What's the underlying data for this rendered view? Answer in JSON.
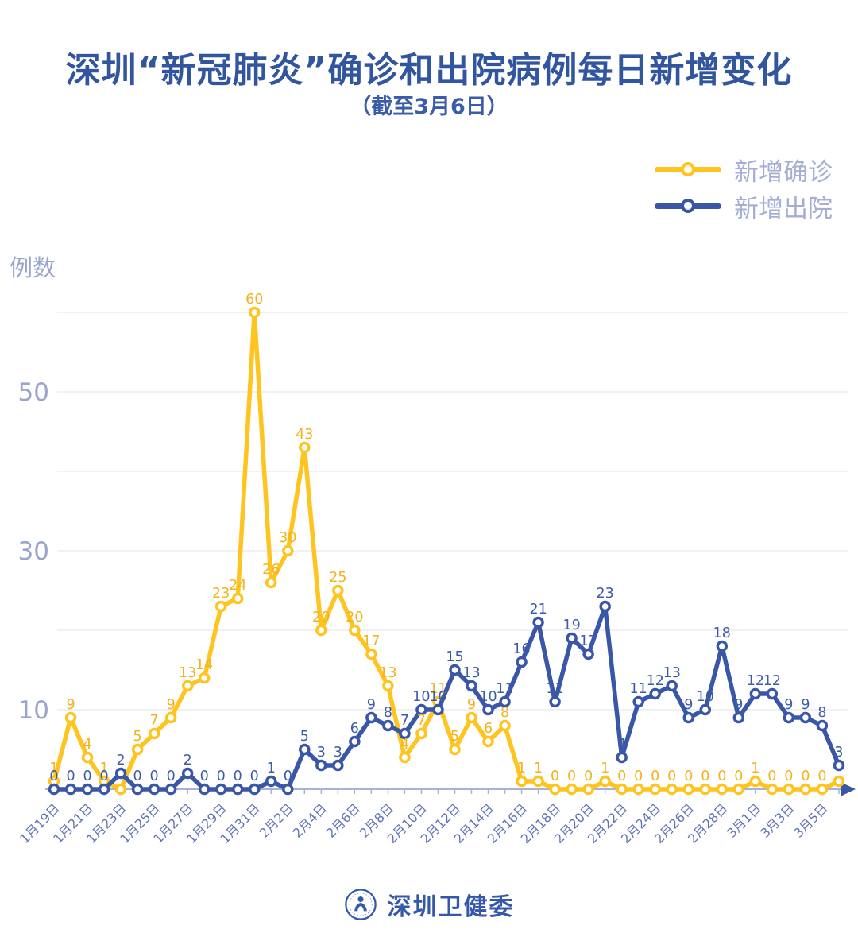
{
  "header": {
    "title": "深圳“新冠肺炎”确诊和出院病例每日新增变化",
    "subtitle": "（截至3月6日）"
  },
  "y_axis_label": "例数",
  "legend": [
    {
      "label": "新增确诊",
      "color": "#FFC41F"
    },
    {
      "label": "新增出院",
      "color": "#3A57A7"
    }
  ],
  "footer": {
    "org": "深圳卫健委",
    "logo": "shenzhen-health-commission-seal"
  },
  "colors": {
    "title": "#32559F",
    "grid": "#ECECF3",
    "axis": "#A8B2D8",
    "axis_arrow": "#3A57A7",
    "x_tick_label": "#6273B5",
    "y_tick_label": "#9AA5CD",
    "legend_text": "#A6AED3"
  },
  "chart_data": {
    "type": "line",
    "title": "深圳“新冠肺炎”确诊和出院病例每日新增变化",
    "subtitle": "（截至3月6日）",
    "ylabel": "例数",
    "ylim": [
      0,
      62
    ],
    "yticks_labeled": [
      10,
      30,
      50
    ],
    "gridlines": [
      10,
      20,
      30,
      40,
      50,
      60
    ],
    "grid": "on",
    "legend_position": "top-right",
    "x_label_every": 2,
    "categories": [
      "1月19日",
      "1月20日",
      "1月21日",
      "1月22日",
      "1月23日",
      "1月24日",
      "1月25日",
      "1月26日",
      "1月27日",
      "1月28日",
      "1月29日",
      "1月30日",
      "1月31日",
      "2月1日",
      "2月2日",
      "2月3日",
      "2月4日",
      "2月5日",
      "2月6日",
      "2月7日",
      "2月8日",
      "2月9日",
      "2月10日",
      "2月11日",
      "2月12日",
      "2月13日",
      "2月14日",
      "2月15日",
      "2月16日",
      "2月17日",
      "2月18日",
      "2月19日",
      "2月20日",
      "2月21日",
      "2月22日",
      "2月23日",
      "2月24日",
      "2月25日",
      "2月26日",
      "2月27日",
      "2月28日",
      "2月29日",
      "3月1日",
      "3月2日",
      "3月3日",
      "3月4日",
      "3月5日",
      "3月6日"
    ],
    "series": [
      {
        "name": "新增确诊",
        "color": "#FFC41F",
        "label_color": "#F2B31D",
        "values": [
          1,
          9,
          4,
          1,
          0,
          5,
          7,
          9,
          13,
          14,
          23,
          24,
          60,
          26,
          30,
          43,
          20,
          25,
          20,
          17,
          13,
          4,
          7,
          11,
          5,
          9,
          6,
          8,
          1,
          1,
          0,
          0,
          0,
          1,
          0,
          0,
          0,
          0,
          0,
          0,
          0,
          0,
          1,
          0,
          0,
          0,
          0,
          1
        ],
        "hidden_value_labels": [
          4,
          47
        ]
      },
      {
        "name": "新增出院",
        "color": "#3A57A7",
        "label_color": "#3D5CA8",
        "values": [
          0,
          0,
          0,
          0,
          2,
          0,
          0,
          0,
          2,
          0,
          0,
          0,
          0,
          1,
          0,
          5,
          3,
          3,
          6,
          9,
          8,
          7,
          10,
          10,
          15,
          13,
          10,
          11,
          16,
          21,
          11,
          19,
          17,
          23,
          4,
          11,
          12,
          13,
          9,
          10,
          18,
          9,
          12,
          12,
          9,
          9,
          8,
          3
        ],
        "hidden_value_labels": []
      }
    ]
  }
}
